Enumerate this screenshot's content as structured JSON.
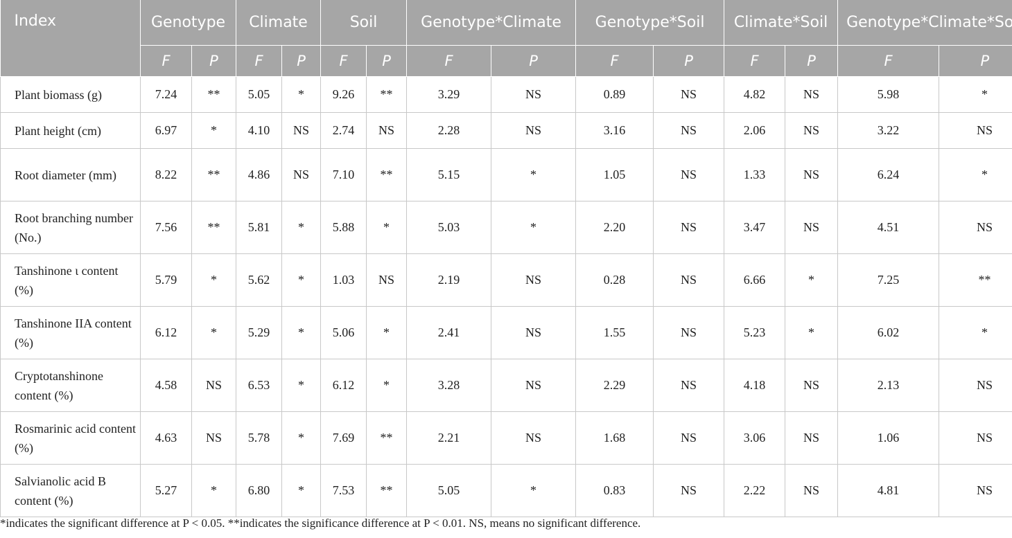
{
  "table": {
    "index_label": "Index",
    "groups": [
      "Genotype",
      "Climate",
      "Soil",
      "Genotype*Climate",
      "Genotype*Soil",
      "Climate*Soil",
      "Genotype*Climate*Soil"
    ],
    "sub_f": "F",
    "sub_p": "P",
    "rows": [
      {
        "name": "Plant biomass (g)",
        "cells": [
          "7.24",
          "**",
          "5.05",
          "*",
          "9.26",
          "**",
          "3.29",
          "NS",
          "0.89",
          "NS",
          "4.82",
          "NS",
          "5.98",
          "*"
        ]
      },
      {
        "name": "Plant height (cm)",
        "cells": [
          "6.97",
          "*",
          "4.10",
          "NS",
          "2.74",
          "NS",
          "2.28",
          "NS",
          "3.16",
          "NS",
          "2.06",
          "NS",
          "3.22",
          "NS"
        ]
      },
      {
        "name": "Root diameter (mm)",
        "cells": [
          "8.22",
          "**",
          "4.86",
          "NS",
          "7.10",
          "**",
          "5.15",
          "*",
          "1.05",
          "NS",
          "1.33",
          "NS",
          "6.24",
          "*"
        ]
      },
      {
        "name": "Root branching number (No.)",
        "cells": [
          "7.56",
          "**",
          "5.81",
          "*",
          "5.88",
          "*",
          "5.03",
          "*",
          "2.20",
          "NS",
          "3.47",
          "NS",
          "4.51",
          "NS"
        ]
      },
      {
        "name": "Tanshinone ι content (%)",
        "cells": [
          "5.79",
          "*",
          "5.62",
          "*",
          "1.03",
          "NS",
          "2.19",
          "NS",
          "0.28",
          "NS",
          "6.66",
          "*",
          "7.25",
          "**"
        ]
      },
      {
        "name": "Tanshinone IIA content (%)",
        "cells": [
          "6.12",
          "*",
          "5.29",
          "*",
          "5.06",
          "*",
          "2.41",
          "NS",
          "1.55",
          "NS",
          "5.23",
          "*",
          "6.02",
          "*"
        ]
      },
      {
        "name": "Cryptotanshinone content (%)",
        "cells": [
          "4.58",
          "NS",
          "6.53",
          "*",
          "6.12",
          "*",
          "3.28",
          "NS",
          "2.29",
          "NS",
          "4.18",
          "NS",
          "2.13",
          "NS"
        ]
      },
      {
        "name": "Rosmarinic acid content (%)",
        "cells": [
          "4.63",
          "NS",
          "5.78",
          "*",
          "7.69",
          "**",
          "2.21",
          "NS",
          "1.68",
          "NS",
          "3.06",
          "NS",
          "1.06",
          "NS"
        ]
      },
      {
        "name": "Salvianolic acid B content (%)",
        "cells": [
          "5.27",
          "*",
          "6.80",
          "*",
          "7.53",
          "**",
          "5.05",
          "*",
          "0.83",
          "NS",
          "2.22",
          "NS",
          "4.81",
          "NS"
        ]
      }
    ]
  },
  "footnote": "*indicates the significant difference at P < 0.05. **indicates the significance difference at P < 0.01. NS, means no significant difference."
}
